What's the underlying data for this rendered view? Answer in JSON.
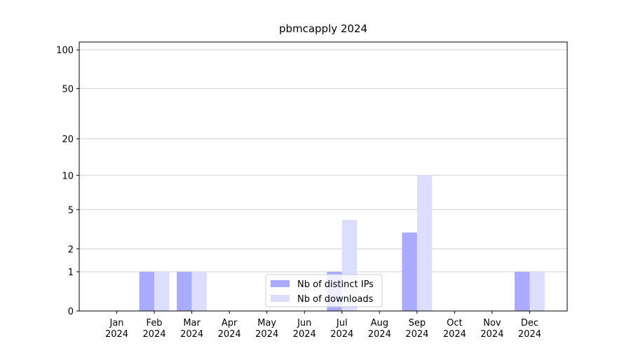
{
  "chart_data": {
    "type": "bar",
    "title": "pbmcapply 2024",
    "categories": [
      "Jan 2024",
      "Feb 2024",
      "Mar 2024",
      "Apr 2024",
      "May 2024",
      "Jun 2024",
      "Jul 2024",
      "Aug 2024",
      "Sep 2024",
      "Oct 2024",
      "Nov 2024",
      "Dec 2024"
    ],
    "series": [
      {
        "name": "Nb of distinct IPs",
        "color": "#aaaaff",
        "values": [
          0,
          1,
          1,
          0,
          0,
          0,
          1,
          0,
          3,
          0,
          0,
          1
        ]
      },
      {
        "name": "Nb of downloads",
        "color": "#ddddff",
        "values": [
          0,
          1,
          1,
          0,
          0,
          0,
          4,
          0,
          10,
          0,
          0,
          1
        ]
      }
    ],
    "yscale": "log1p",
    "ylim": [
      0,
      115
    ],
    "yticks": [
      0,
      1,
      2,
      5,
      10,
      20,
      50,
      100
    ],
    "grid": true,
    "legend": "lower center"
  }
}
